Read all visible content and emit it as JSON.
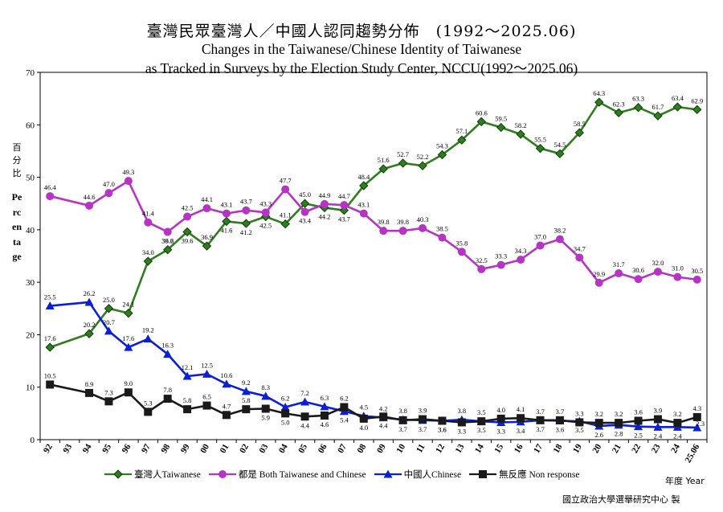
{
  "chart_data": {
    "type": "line",
    "title_zh": "臺灣民眾臺灣人／中國人認同趨勢分佈　(1992～2025.06)",
    "title_en_line1": "Changes in the Taiwanese/Chinese Identity of Taiwanese",
    "title_en_line2": "as Tracked in Surveys by the Election Study Center, NCCU(1992～2025.06)",
    "ylabel_zh": "百分比",
    "ylabel_en": "Percentage",
    "xlabel": "年度 Year",
    "credit": "國立政治大學選舉研究中心 製",
    "ylim": [
      0,
      70
    ],
    "yticks": [
      "0",
      "10",
      "20",
      "30",
      "40",
      "50",
      "60",
      "70"
    ],
    "categories": [
      "92",
      "93",
      "94",
      "95",
      "96",
      "97",
      "98",
      "99",
      "00",
      "01",
      "02",
      "03",
      "04",
      "05",
      "06",
      "07",
      "08",
      "09",
      "10",
      "11",
      "12",
      "13",
      "14",
      "15",
      "16",
      "17",
      "18",
      "19",
      "20",
      "21",
      "22",
      "23",
      "24",
      "25.06"
    ],
    "series": [
      {
        "name": "臺灣人Taiwanese",
        "color": "#2e7d1e",
        "marker": "diamond",
        "values": [
          17.6,
          null,
          20.2,
          25.0,
          24.1,
          34.0,
          36.2,
          39.6,
          36.9,
          41.6,
          41.2,
          42.5,
          41.1,
          45.0,
          44.2,
          43.7,
          48.4,
          51.6,
          52.7,
          52.2,
          54.3,
          57.1,
          60.6,
          59.5,
          58.2,
          55.5,
          54.5,
          58.5,
          64.3,
          62.3,
          63.3,
          61.7,
          63.4,
          62.9
        ]
      },
      {
        "name": "都是 Both Taiwanese and Chinese",
        "color": "#b634c4",
        "marker": "circle",
        "values": [
          46.4,
          null,
          44.6,
          47.0,
          49.3,
          41.4,
          39.6,
          42.5,
          44.1,
          43.1,
          43.7,
          43.3,
          47.7,
          43.4,
          44.9,
          44.7,
          43.1,
          39.8,
          39.8,
          40.3,
          38.5,
          35.8,
          32.5,
          33.3,
          34.3,
          37.0,
          38.2,
          34.7,
          29.9,
          31.7,
          30.6,
          32.0,
          31.0,
          30.5
        ]
      },
      {
        "name": "中國人Chinese",
        "color": "#0a1fd6",
        "marker": "triangle",
        "values": [
          25.5,
          null,
          26.2,
          20.7,
          17.6,
          19.2,
          16.3,
          12.1,
          12.5,
          10.6,
          9.2,
          8.3,
          6.2,
          7.2,
          6.3,
          5.4,
          4.5,
          4.2,
          3.8,
          3.7,
          3.6,
          3.8,
          3.5,
          3.3,
          3.4,
          3.7,
          3.6,
          3.5,
          2.6,
          2.8,
          2.5,
          2.4,
          2.4,
          2.3
        ]
      },
      {
        "name": "無反應 Non response",
        "color": "#1a1a1a",
        "marker": "square",
        "values": [
          10.5,
          null,
          8.9,
          7.3,
          9.0,
          5.3,
          7.8,
          5.8,
          6.5,
          4.7,
          5.8,
          5.9,
          5.0,
          4.4,
          4.6,
          6.2,
          4.0,
          4.4,
          3.7,
          3.9,
          3.6,
          3.3,
          3.5,
          4.0,
          4.1,
          3.7,
          3.7,
          3.3,
          3.2,
          3.2,
          3.6,
          3.9,
          3.2,
          4.3
        ]
      }
    ],
    "legend_position": "bottom"
  }
}
